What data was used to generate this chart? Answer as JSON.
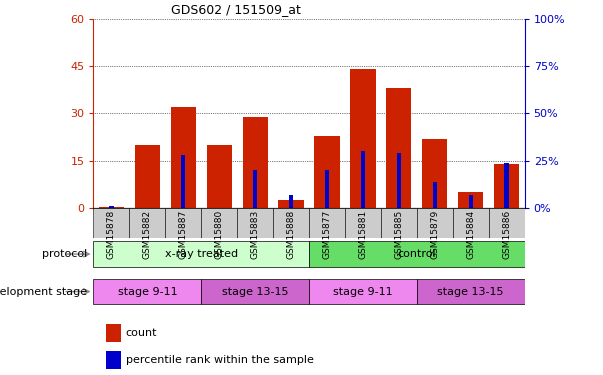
{
  "title": "GDS602 / 151509_at",
  "samples": [
    "GSM15878",
    "GSM15882",
    "GSM15887",
    "GSM15880",
    "GSM15883",
    "GSM15888",
    "GSM15877",
    "GSM15881",
    "GSM15885",
    "GSM15879",
    "GSM15884",
    "GSM15886"
  ],
  "count_values": [
    0.5,
    20,
    32,
    20,
    29,
    2.5,
    23,
    44,
    38,
    22,
    5,
    14
  ],
  "percentile_values": [
    1,
    0,
    28,
    0,
    20,
    7,
    20,
    30,
    29,
    14,
    7,
    24
  ],
  "ylim_left": [
    0,
    60
  ],
  "ylim_right": [
    0,
    100
  ],
  "yticks_left": [
    0,
    15,
    30,
    45,
    60
  ],
  "yticks_right": [
    0,
    25,
    50,
    75,
    100
  ],
  "ytick_labels_left": [
    "0",
    "15",
    "30",
    "45",
    "60"
  ],
  "ytick_labels_right": [
    "0%",
    "25%",
    "50%",
    "75%",
    "100%"
  ],
  "bar_color_red": "#cc2200",
  "bar_color_blue": "#0000cc",
  "protocol_groups": [
    {
      "label": "x-ray treated",
      "start": 0,
      "end": 6,
      "color": "#ccffcc"
    },
    {
      "label": "control",
      "start": 6,
      "end": 12,
      "color": "#66dd66"
    }
  ],
  "stage_groups": [
    {
      "label": "stage 9-11",
      "start": 0,
      "end": 3,
      "color": "#ee88ee"
    },
    {
      "label": "stage 13-15",
      "start": 3,
      "end": 6,
      "color": "#cc66cc"
    },
    {
      "label": "stage 9-11",
      "start": 6,
      "end": 9,
      "color": "#ee88ee"
    },
    {
      "label": "stage 13-15",
      "start": 9,
      "end": 12,
      "color": "#cc66cc"
    }
  ],
  "protocol_label": "protocol",
  "stage_label": "development stage",
  "legend_count": "count",
  "legend_percentile": "percentile rank within the sample",
  "background_color": "#ffffff",
  "plot_bg_color": "#ffffff",
  "xticklabel_bg": "#cccccc",
  "red_bar_width": 0.7,
  "blue_bar_width": 0.12
}
